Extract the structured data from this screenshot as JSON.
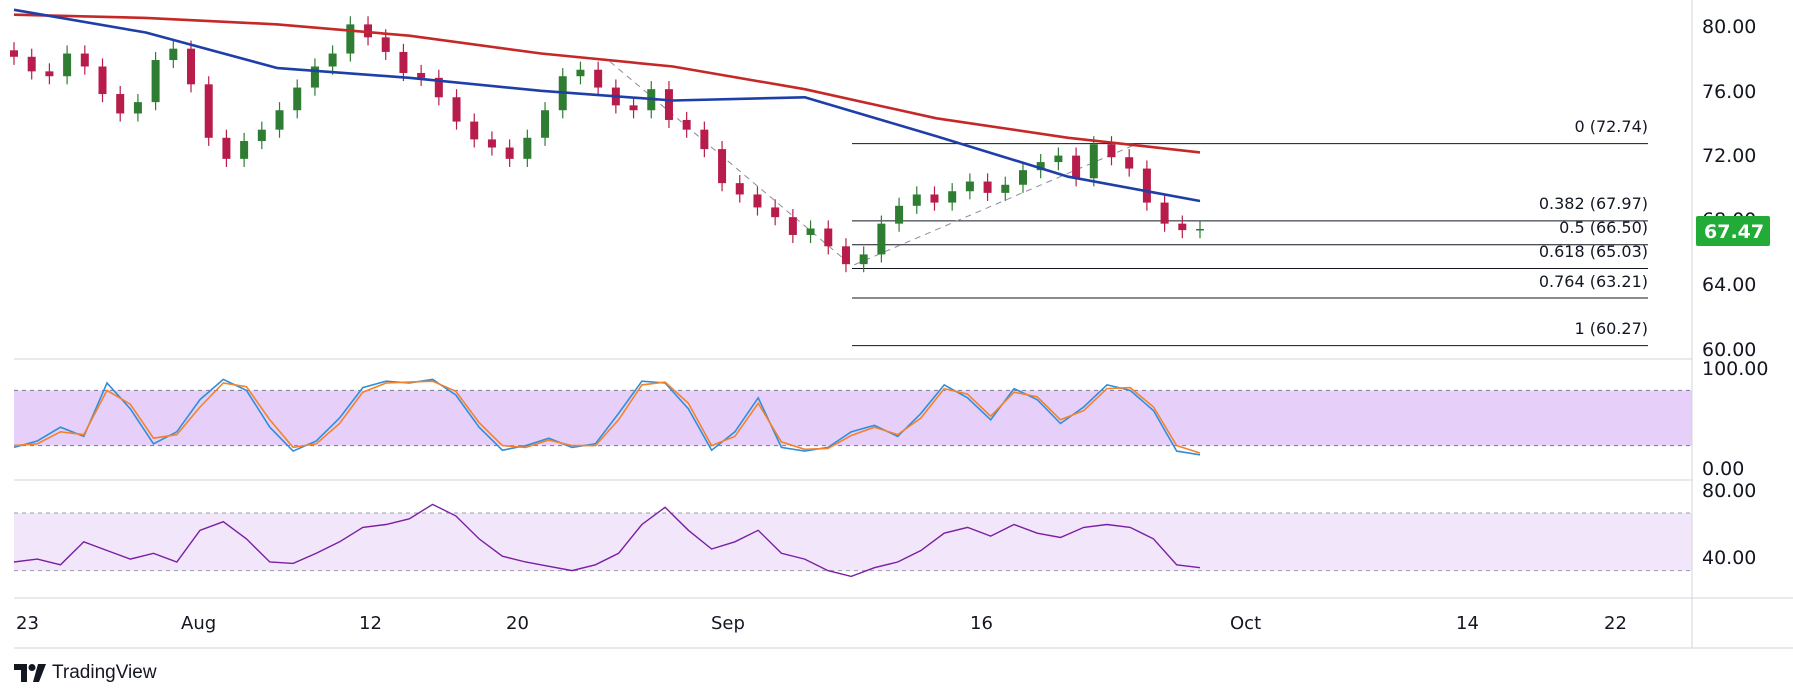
{
  "brand": {
    "name": "TradingView",
    "icon": "tradingview-logo-icon"
  },
  "colors": {
    "ma_slow": "#c62828",
    "ma_fast": "#1f3fa8",
    "bull": "#2e7d32",
    "bear": "#b71c4a",
    "stoch_k": "#2f8fdc",
    "stoch_d": "#f4822a",
    "rsi": "#7b1fa2",
    "band_fill": "#e6d0fa",
    "rsi_band_fill": "#f2e6fb",
    "price_tag": "#22ab36",
    "fib_line": "#131722",
    "grid": "#e0e3eb"
  },
  "current_price": {
    "label": "67.47",
    "value": 67.47
  },
  "hidden_tick": "68.00",
  "chart_data": [
    {
      "type": "candlestick",
      "pane": "price",
      "title": "",
      "x_tick_labels": [
        "23",
        "Aug",
        "12",
        "20",
        "Sep",
        "16",
        "Oct",
        "14",
        "22"
      ],
      "y_tick_labels": [
        "80.00",
        "76.00",
        "72.00",
        "64.00",
        "60.00"
      ],
      "ylim": [
        60,
        80
      ],
      "moving_averages": [
        {
          "color": "red",
          "start": 80.7,
          "points": [
            80.7,
            80.5,
            80.1,
            79.4,
            78.3,
            77.5,
            76.1,
            74.3,
            73.1,
            72.2
          ]
        },
        {
          "color": "blue",
          "start": 81.0,
          "points": [
            81.0,
            79.6,
            77.4,
            76.8,
            76.0,
            75.4,
            75.6,
            73.2,
            70.7,
            69.2
          ]
        }
      ],
      "candle_closes": [
        78.1,
        77.2,
        76.9,
        78.3,
        77.5,
        75.8,
        74.6,
        75.3,
        77.9,
        78.6,
        76.4,
        73.1,
        71.8,
        72.9,
        73.6,
        74.8,
        76.2,
        77.5,
        78.3,
        80.1,
        79.3,
        78.4,
        77.1,
        76.8,
        75.6,
        74.1,
        73.0,
        72.5,
        71.8,
        73.1,
        74.8,
        76.9,
        77.3,
        76.2,
        75.1,
        74.8,
        76.1,
        74.2,
        73.6,
        72.4,
        70.3,
        69.6,
        68.8,
        68.2,
        67.1,
        67.5,
        66.4,
        65.3,
        65.9,
        67.8,
        68.9,
        69.6,
        69.1,
        69.8,
        70.4,
        69.7,
        70.2,
        71.1,
        71.6,
        72.0,
        70.6,
        72.7,
        71.9,
        71.2,
        69.1,
        67.8,
        67.4,
        67.47
      ],
      "fibonacci": [
        {
          "label": "0 (72.74)",
          "value": 72.74
        },
        {
          "label": "0.382 (67.97)",
          "value": 67.97
        },
        {
          "label": "0.5 (66.50)",
          "value": 66.5
        },
        {
          "label": "0.618 (65.03)",
          "value": 65.03
        },
        {
          "label": "0.764 (63.21)",
          "value": 63.21
        },
        {
          "label": "1 (60.27)",
          "value": 60.27
        }
      ],
      "trend_lines": "dashed diagonal from 77.8 (late Aug) to 65.2 (mid Sep) and up to 72.7"
    },
    {
      "type": "line",
      "pane": "stochastic",
      "y_tick_labels": [
        "100.00",
        "0.00"
      ],
      "ylim": [
        0,
        100
      ],
      "band": [
        20,
        80
      ],
      "series": [
        {
          "color": "blue",
          "values": [
            18,
            25,
            40,
            30,
            88,
            60,
            22,
            35,
            70,
            92,
            80,
            40,
            14,
            25,
            50,
            83,
            90,
            88,
            92,
            75,
            40,
            15,
            20,
            28,
            18,
            22,
            55,
            90,
            88,
            60,
            15,
            35,
            72,
            18,
            14,
            18,
            35,
            42,
            30,
            55,
            86,
            72,
            48,
            82,
            70,
            44,
            62,
            86,
            80,
            58,
            14,
            10
          ]
        },
        {
          "color": "orange",
          "values": [
            20,
            22,
            35,
            32,
            80,
            65,
            28,
            32,
            62,
            88,
            84,
            48,
            18,
            22,
            44,
            78,
            88,
            89,
            90,
            79,
            45,
            20,
            18,
            26,
            20,
            20,
            48,
            86,
            89,
            66,
            20,
            30,
            66,
            24,
            16,
            17,
            31,
            40,
            32,
            50,
            82,
            76,
            52,
            78,
            73,
            48,
            58,
            82,
            83,
            62,
            20,
            12
          ]
        }
      ]
    },
    {
      "type": "line",
      "pane": "rsi",
      "y_tick_labels": [
        "80.00",
        "40.00"
      ],
      "ylim": [
        20,
        86
      ],
      "band": [
        30,
        70
      ],
      "series": [
        {
          "color": "purple",
          "values": [
            36,
            38,
            34,
            50,
            44,
            38,
            42,
            36,
            58,
            64,
            52,
            36,
            35,
            42,
            50,
            60,
            62,
            66,
            76,
            68,
            52,
            40,
            36,
            33,
            30,
            34,
            42,
            62,
            74,
            58,
            45,
            50,
            58,
            42,
            38,
            30,
            26,
            32,
            36,
            44,
            56,
            60,
            54,
            62,
            56,
            53,
            60,
            62,
            60,
            52,
            34,
            32
          ]
        }
      ]
    }
  ]
}
